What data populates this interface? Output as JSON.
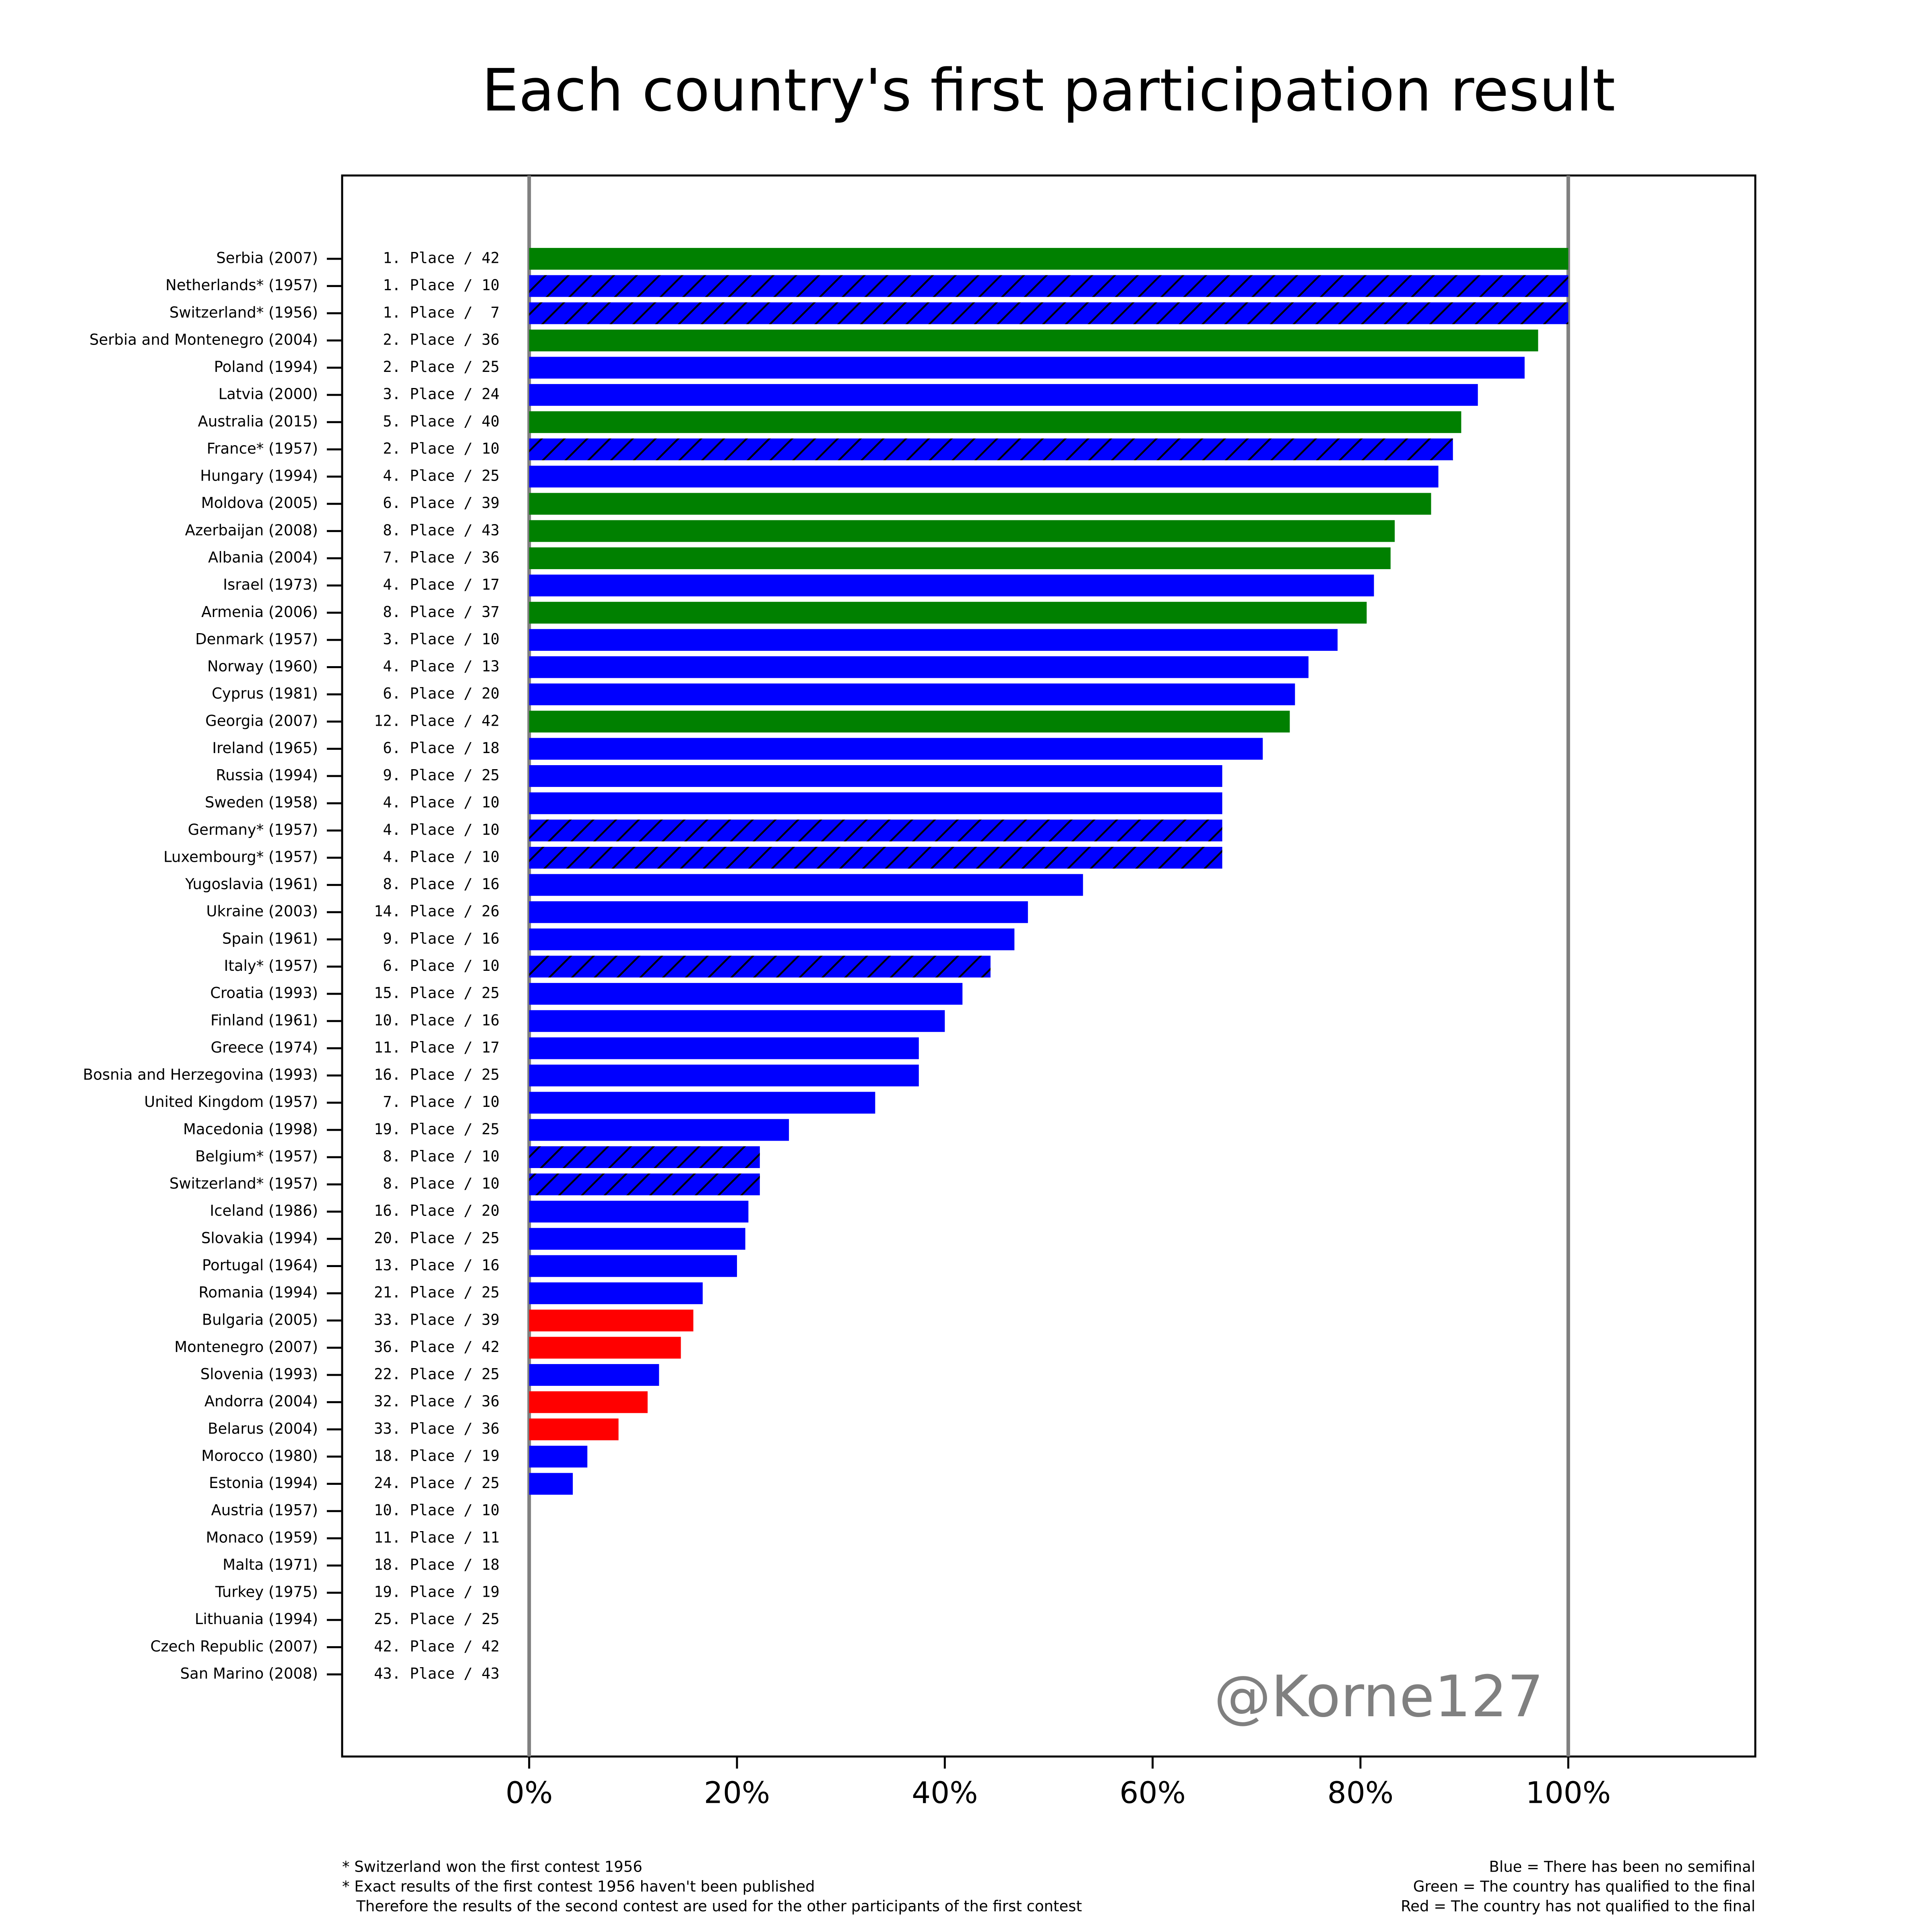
{
  "chart_data": {
    "type": "barh",
    "title": "Each country's first participation result",
    "categories": [
      "Serbia (2007)",
      "Netherlands* (1957)",
      "Switzerland* (1956)",
      "Serbia and Montenegro (2004)",
      "Poland (1994)",
      "Latvia (2000)",
      "Australia (2015)",
      "France* (1957)",
      "Hungary (1994)",
      "Moldova (2005)",
      "Azerbaijan (2008)",
      "Albania (2004)",
      "Israel (1973)",
      "Armenia (2006)",
      "Denmark (1957)",
      "Norway (1960)",
      "Cyprus (1981)",
      "Georgia (2007)",
      "Ireland (1965)",
      "Russia (1994)",
      "Sweden (1958)",
      "Germany* (1957)",
      "Luxembourg* (1957)",
      "Yugoslavia (1961)",
      "Ukraine (2003)",
      "Spain (1961)",
      "Italy* (1957)",
      "Croatia (1993)",
      "Finland (1961)",
      "Greece (1974)",
      "Bosnia and Herzegovina (1993)",
      "United Kingdom (1957)",
      "Macedonia (1998)",
      "Belgium* (1957)",
      "Switzerland* (1957)",
      "Iceland (1986)",
      "Slovakia (1994)",
      "Portugal (1964)",
      "Romania (1994)",
      "Bulgaria (2005)",
      "Montenegro (2007)",
      "Slovenia (1993)",
      "Andorra (2004)",
      "Belarus (2004)",
      "Morocco (1980)",
      "Estonia (1994)",
      "Austria (1957)",
      "Monaco (1959)",
      "Malta (1971)",
      "Turkey (1975)",
      "Lithuania (1994)",
      "Czech Republic (2007)",
      "San Marino (2008)"
    ],
    "values": [
      100,
      100,
      100,
      97.1,
      95.8,
      91.3,
      89.7,
      88.9,
      87.5,
      86.8,
      83.3,
      82.9,
      81.3,
      80.6,
      77.8,
      75,
      73.7,
      73.2,
      70.6,
      66.7,
      66.7,
      66.7,
      66.7,
      53.3,
      48,
      46.7,
      44.4,
      41.7,
      40,
      37.5,
      37.5,
      33.3,
      25,
      22.2,
      22.2,
      21.1,
      20.8,
      20,
      16.7,
      15.8,
      14.6,
      12.5,
      11.4,
      8.6,
      5.6,
      4.2,
      0,
      0,
      0,
      0,
      0,
      0,
      0
    ],
    "place_labels": [
      "1. Place / 42",
      "1. Place / 10",
      "1. Place /  7",
      "2. Place / 36",
      "2. Place / 25",
      "3. Place / 24",
      "5. Place / 40",
      "2. Place / 10",
      "4. Place / 25",
      "6. Place / 39",
      "8. Place / 43",
      "7. Place / 36",
      "4. Place / 17",
      "8. Place / 37",
      "3. Place / 10",
      "4. Place / 13",
      "6. Place / 20",
      "12. Place / 42",
      "6. Place / 18",
      "9. Place / 25",
      "4. Place / 10",
      "4. Place / 10",
      "4. Place / 10",
      "8. Place / 16",
      "14. Place / 26",
      "9. Place / 16",
      "6. Place / 10",
      "15. Place / 25",
      "10. Place / 16",
      "11. Place / 17",
      "16. Place / 25",
      "7. Place / 10",
      "19. Place / 25",
      "8. Place / 10",
      "8. Place / 10",
      "16. Place / 20",
      "20. Place / 25",
      "13. Place / 16",
      "21. Place / 25",
      "33. Place / 39",
      "36. Place / 42",
      "22. Place / 25",
      "32. Place / 36",
      "33. Place / 36",
      "18. Place / 19",
      "24. Place / 25",
      "10. Place / 10",
      "11. Place / 11",
      "18. Place / 18",
      "19. Place / 19",
      "25. Place / 25",
      "42. Place / 42",
      "43. Place / 43"
    ],
    "bar_colors": [
      "#008000",
      "#0000ff",
      "#0000ff",
      "#008000",
      "#0000ff",
      "#0000ff",
      "#008000",
      "#0000ff",
      "#0000ff",
      "#008000",
      "#008000",
      "#008000",
      "#0000ff",
      "#008000",
      "#0000ff",
      "#0000ff",
      "#0000ff",
      "#008000",
      "#0000ff",
      "#0000ff",
      "#0000ff",
      "#0000ff",
      "#0000ff",
      "#0000ff",
      "#0000ff",
      "#0000ff",
      "#0000ff",
      "#0000ff",
      "#0000ff",
      "#0000ff",
      "#0000ff",
      "#0000ff",
      "#0000ff",
      "#0000ff",
      "#0000ff",
      "#0000ff",
      "#0000ff",
      "#0000ff",
      "#0000ff",
      "#ff0000",
      "#ff0000",
      "#0000ff",
      "#ff0000",
      "#ff0000",
      "#0000ff",
      "#0000ff",
      "#0000ff",
      "#0000ff",
      "#0000ff",
      "#0000ff",
      "#0000ff",
      "#0000ff",
      "#0000ff"
    ],
    "hatched": [
      false,
      true,
      true,
      false,
      false,
      false,
      false,
      true,
      false,
      false,
      false,
      false,
      false,
      false,
      false,
      false,
      false,
      false,
      false,
      false,
      false,
      true,
      true,
      false,
      false,
      false,
      true,
      false,
      false,
      false,
      false,
      false,
      false,
      true,
      true,
      false,
      false,
      false,
      false,
      false,
      false,
      false,
      false,
      false,
      false,
      false,
      false,
      false,
      false,
      false,
      false,
      false,
      false
    ],
    "xlim": [
      -18,
      118
    ],
    "xticks": [
      {
        "value": 0,
        "label": "0%"
      },
      {
        "value": 20,
        "label": "20%"
      },
      {
        "value": 40,
        "label": "40%"
      },
      {
        "value": 60,
        "label": "60%"
      },
      {
        "value": 80,
        "label": "80%"
      },
      {
        "value": 100,
        "label": "100%"
      }
    ],
    "reference_lines": [
      0,
      100
    ],
    "reference_color": "#808080",
    "watermark": "@Korne127",
    "footnotes": [
      "* Switzerland won the first contest 1956",
      "* Exact results of the first contest 1956 haven't been published",
      "   Therefore the results of the second contest are used for the other participants of the first contest"
    ],
    "legend_notes": [
      "Blue = There has been no semifinal",
      "Green = The country has qualified to the final",
      "Red = The country has not qualified to the final"
    ]
  }
}
